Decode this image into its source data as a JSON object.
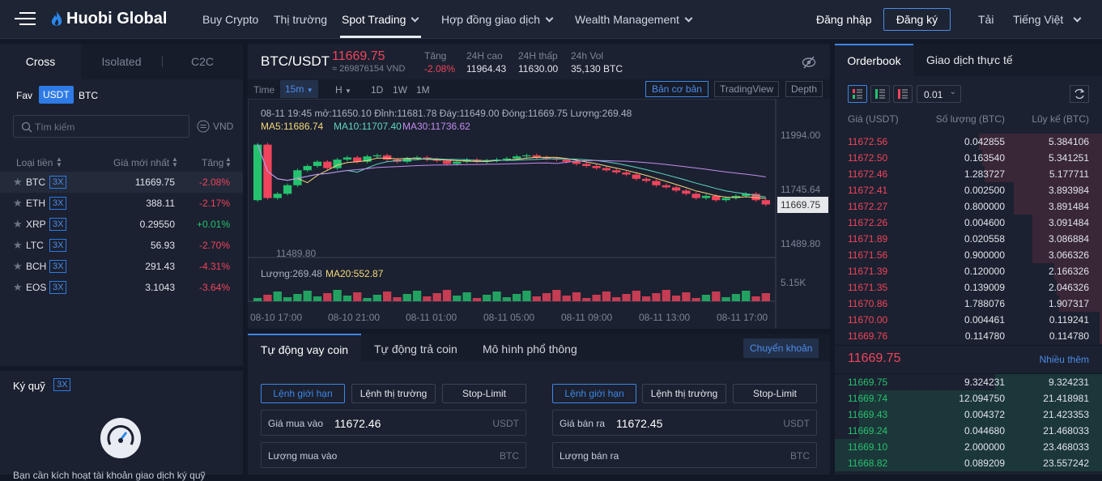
{
  "nav": {
    "brand": "Huobi Global",
    "links": [
      "Buy Crypto",
      "Thị trường",
      "Spot Trading",
      "Hợp đồng giao dịch",
      "Wealth Management"
    ],
    "login": "Đăng nhập",
    "register": "Đăng ký",
    "download": "Tải",
    "language": "Tiếng Việt"
  },
  "left": {
    "tabs": [
      "Cross",
      "Isolated",
      "C2C"
    ],
    "quote_tabs": [
      "Fav",
      "USDT",
      "BTC"
    ],
    "search_placeholder": "Tìm kiếm",
    "currency": "VND",
    "headers": [
      "Loại tiền",
      "Giá mới nhất",
      "Tăng"
    ],
    "rows": [
      {
        "coin": "BTC",
        "lev": "3X",
        "price": "11669.75",
        "chg": "-2.08%",
        "up": false
      },
      {
        "coin": "ETH",
        "lev": "3X",
        "price": "388.11",
        "chg": "-2.17%",
        "up": false
      },
      {
        "coin": "XRP",
        "lev": "3X",
        "price": "0.29550",
        "chg": "+0.01%",
        "up": true
      },
      {
        "coin": "LTC",
        "lev": "3X",
        "price": "56.93",
        "chg": "-2.70%",
        "up": false
      },
      {
        "coin": "BCH",
        "lev": "3X",
        "price": "291.43",
        "chg": "-4.31%",
        "up": false
      },
      {
        "coin": "EOS",
        "lev": "3X",
        "price": "3.1043",
        "chg": "-3.64%",
        "up": false
      }
    ],
    "margin_title": "Ký quỹ",
    "margin_lev": "3X",
    "margin_text": "Bạn cần kích hoạt tài khoản giao dịch ký quỹ"
  },
  "ticker": {
    "pair": "BTC/USDT",
    "price": "11669.75",
    "vnd": "≈ 269876154 VND",
    "chg_label": "Tăng",
    "chg": "-2.08%",
    "high_label": "24H cao",
    "high": "11964.43",
    "low_label": "24H thấp",
    "low": "11630.00",
    "vol_label": "24h Vol",
    "vol": "35,130 BTC"
  },
  "chart_toolbar": {
    "time": "Time",
    "intervals": [
      "15m",
      "H",
      "1D",
      "1W",
      "1M"
    ],
    "modes": [
      "Bản cơ bản",
      "TradingView",
      "Depth"
    ]
  },
  "chart": {
    "ohlc": "08-11 19:45 mở:11650.10 Đỉnh:11681.78 Đáy:11649.00 Đóng:11669.75 Lượng:269.48",
    "ma5": "MA5:11686.74",
    "ma10": "MA10:11707.40",
    "ma30": "MA30:11736.62",
    "price_ticks": [
      "11994.00",
      "11745.64",
      "11489.80"
    ],
    "last": "11669.75",
    "low_marker": "11489.80",
    "vol_label": "Lượng:269.48",
    "ma20": "MA20:552.87",
    "vol_tick": "5.15K",
    "time_ticks": [
      "08-10 17:00",
      "08-10 21:00",
      "08-11 01:00",
      "08-11 05:00",
      "08-11 09:00",
      "08-11 13:00",
      "08-11 17:00"
    ]
  },
  "chart_data": {
    "type": "candlestick",
    "title": "BTC/USDT",
    "interval": "15m",
    "ylim": [
      11489.8,
      11994.0
    ],
    "x_ticks": [
      "08-10 17:00",
      "08-10 21:00",
      "08-11 01:00",
      "08-11 05:00",
      "08-11 09:00",
      "08-11 13:00",
      "08-11 17:00"
    ],
    "last": {
      "time": "08-11 19:45",
      "open": 11650.1,
      "high": 11681.78,
      "low": 11649.0,
      "close": 11669.75,
      "volume": 269.48
    },
    "series": [
      {
        "name": "MA5",
        "value": 11686.74
      },
      {
        "name": "MA10",
        "value": 11707.4
      },
      {
        "name": "MA30",
        "value": 11736.62
      },
      {
        "name": "MA20",
        "value": 552.87
      }
    ],
    "close": [
      11950,
      11700,
      11720,
      11760,
      11830,
      11850,
      11870,
      11840,
      11880,
      11890,
      11870,
      11895,
      11900,
      11880,
      11870,
      11885,
      11890,
      11880,
      11875,
      11860,
      11870,
      11880,
      11870,
      11875,
      11880,
      11885,
      11895,
      11900,
      11890,
      11885,
      11880,
      11870,
      11860,
      11850,
      11840,
      11830,
      11820,
      11810,
      11790,
      11780,
      11760,
      11750,
      11735,
      11720,
      11700,
      11710,
      11690,
      11700,
      11710,
      11720,
      11690,
      11670
    ]
  },
  "orders": {
    "tabs": [
      "Tự động vay coin",
      "Tự động trả coin",
      "Mô hình phổ thông"
    ],
    "transfer": "Chuyển khoản",
    "types": [
      "Lệnh giới hạn",
      "Lệnh thị trường",
      "Stop-Limit"
    ],
    "buy_price_label": "Giá mua vào",
    "buy_price": "11672.46",
    "sell_price_label": "Giá bán ra",
    "sell_price": "11672.45",
    "buy_amount_label": "Lượng mua vào",
    "sell_amount_label": "Lượng bán ra",
    "quote": "USDT",
    "base": "BTC"
  },
  "orderbook": {
    "tabs": [
      "Orderbook",
      "Giao dịch thực tế"
    ],
    "precision": "0.01",
    "headers": [
      "Giá (USDT)",
      "Số lượng (BTC)",
      "Lũy kế (BTC)"
    ],
    "last": "11669.75",
    "more": "Nhiều thêm",
    "asks": [
      {
        "p": "11672.56",
        "q": "0.042855",
        "c": "5.384106",
        "d": 0.46
      },
      {
        "p": "11672.50",
        "q": "0.163540",
        "c": "5.341251",
        "d": 0.45
      },
      {
        "p": "11672.46",
        "q": "1.283727",
        "c": "5.177711",
        "d": 0.44
      },
      {
        "p": "11672.41",
        "q": "0.002500",
        "c": "3.893984",
        "d": 0.33
      },
      {
        "p": "11672.27",
        "q": "0.800000",
        "c": "3.891484",
        "d": 0.33
      },
      {
        "p": "11672.26",
        "q": "0.004600",
        "c": "3.091484",
        "d": 0.26
      },
      {
        "p": "11671.89",
        "q": "0.020558",
        "c": "3.086884",
        "d": 0.26
      },
      {
        "p": "11671.56",
        "q": "0.900000",
        "c": "3.066326",
        "d": 0.26
      },
      {
        "p": "11671.39",
        "q": "0.120000",
        "c": "2.166326",
        "d": 0.18
      },
      {
        "p": "11671.35",
        "q": "0.139009",
        "c": "2.046326",
        "d": 0.17
      },
      {
        "p": "11670.86",
        "q": "1.788076",
        "c": "1.907317",
        "d": 0.16
      },
      {
        "p": "11670.00",
        "q": "0.004461",
        "c": "0.119241",
        "d": 0.01
      },
      {
        "p": "11669.76",
        "q": "0.114780",
        "c": "0.114780",
        "d": 0.01
      }
    ],
    "bids": [
      {
        "p": "11669.75",
        "q": "9.324231",
        "c": "9.324231",
        "d": 0.4
      },
      {
        "p": "11669.74",
        "q": "12.094750",
        "c": "21.418981",
        "d": 0.91
      },
      {
        "p": "11669.43",
        "q": "0.004372",
        "c": "21.423353",
        "d": 0.91
      },
      {
        "p": "11669.24",
        "q": "0.044680",
        "c": "21.468033",
        "d": 0.91
      },
      {
        "p": "11669.10",
        "q": "2.000000",
        "c": "23.468033",
        "d": 1.0
      },
      {
        "p": "11668.82",
        "q": "0.089209",
        "c": "23.557242",
        "d": 1.0
      }
    ]
  }
}
